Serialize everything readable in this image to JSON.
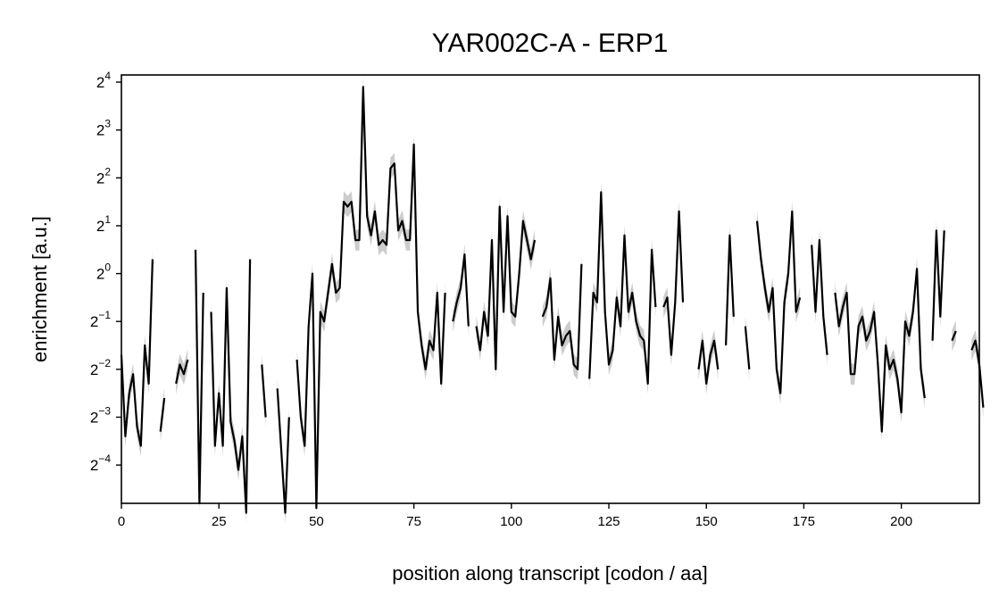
{
  "chart_data": {
    "type": "line",
    "title": "YAR002C-A - ERP1",
    "xlabel": "position along transcript [codon / aa]",
    "ylabel": "enrichment [a.u.]",
    "xscale": "linear",
    "yscale": "log2",
    "xlim": [
      0,
      220
    ],
    "ylim": [
      -4.8,
      4.15
    ],
    "xticks": [
      0,
      25,
      50,
      75,
      100,
      125,
      150,
      175,
      200
    ],
    "yticks": [
      {
        "base": "2",
        "exp": "−4",
        "value": -4
      },
      {
        "base": "2",
        "exp": "−3",
        "value": -3
      },
      {
        "base": "2",
        "exp": "−2",
        "value": -2
      },
      {
        "base": "2",
        "exp": "−1",
        "value": -1
      },
      {
        "base": "2",
        "exp": "0",
        "value": 0
      },
      {
        "base": "2",
        "exp": "1",
        "value": 1
      },
      {
        "base": "2",
        "exp": "2",
        "value": 2
      },
      {
        "base": "2",
        "exp": "3",
        "value": 3
      },
      {
        "base": "2",
        "exp": "4",
        "value": 4
      }
    ],
    "grid": false,
    "line_color": "#000000",
    "band_color": "#cccccc",
    "series": [
      {
        "log2_values": [
          -1.7,
          -3.4,
          -2.5,
          -2.1,
          -3.2,
          -3.6,
          -1.5,
          -2.3,
          0.3,
          null,
          -3.3,
          -2.6,
          null,
          null,
          -2.3,
          -1.9,
          -2.1,
          -1.8,
          null,
          0.5,
          -4.8,
          -0.4,
          null,
          -0.8,
          -3.6,
          -2.5,
          -3.6,
          -0.3,
          -3.1,
          -3.5,
          -4.1,
          -3.4,
          -5.0,
          0.3,
          null,
          null,
          -1.9,
          -3.0,
          null,
          null,
          -2.4,
          -3.7,
          -5.0,
          -3.0,
          null,
          -1.8,
          -3.0,
          -3.6,
          -1.1,
          0.0,
          -4.9,
          -0.8,
          -1.0,
          -0.4,
          0.2,
          -0.4,
          -0.3,
          1.5,
          1.4,
          1.5,
          0.7,
          0.7,
          3.9,
          1.2,
          0.8,
          1.3,
          0.6,
          0.7,
          0.6,
          2.2,
          2.3,
          0.9,
          1.1,
          0.7,
          0.7,
          2.7,
          -0.8,
          -1.5,
          -2.0,
          -1.4,
          -1.6,
          -0.4,
          -2.3,
          -0.4,
          null,
          -1.0,
          -0.6,
          -0.3,
          0.4,
          -1.1,
          null,
          -1.1,
          -1.6,
          -0.8,
          -1.3,
          0.7,
          -2.0,
          1.4,
          -0.8,
          1.2,
          -0.8,
          -0.9,
          0.0,
          1.1,
          0.7,
          0.3,
          0.7,
          null,
          -0.9,
          -0.7,
          -0.1,
          -1.8,
          -0.9,
          -1.5,
          -1.3,
          -1.2,
          -1.9,
          -2.0,
          0.2,
          null,
          -2.2,
          -0.4,
          -0.6,
          1.7,
          -0.8,
          -1.9,
          -1.6,
          -0.5,
          -1.1,
          0.8,
          -0.8,
          -0.4,
          -1.0,
          -1.3,
          -1.4,
          -2.3,
          0.5,
          -0.7,
          null,
          -0.7,
          -0.5,
          -1.7,
          -0.6,
          1.3,
          -0.6,
          null,
          null,
          null,
          -2.0,
          -1.4,
          -2.3,
          -1.7,
          -1.4,
          -2.0,
          null,
          -1.5,
          0.8,
          -0.9,
          null,
          null,
          -1.1,
          -2.0,
          null,
          1.1,
          0.3,
          -0.3,
          -0.8,
          -0.3,
          -2.0,
          -2.5,
          -0.6,
          0.0,
          1.3,
          -0.8,
          -0.5,
          null,
          null,
          0.6,
          -0.8,
          0.7,
          -0.9,
          -1.7,
          null,
          -0.4,
          -1.1,
          -0.7,
          -0.4,
          -2.1,
          -2.1,
          -1.1,
          -0.9,
          -1.4,
          -1.2,
          -0.8,
          -1.9,
          -3.3,
          -1.5,
          -2.0,
          -1.8,
          -2.2,
          -2.9,
          -1.0,
          -1.3,
          -0.8,
          0.1,
          -2.0,
          -2.6,
          null,
          -1.4,
          0.9,
          -0.9,
          0.9,
          null,
          -1.4,
          -1.2,
          null,
          null,
          null,
          -1.6,
          -1.4,
          -1.9,
          -2.8
        ]
      }
    ]
  }
}
